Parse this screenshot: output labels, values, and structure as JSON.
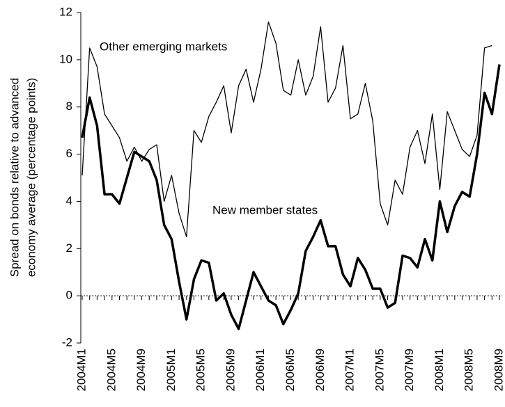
{
  "chart_data": {
    "type": "line",
    "ylabel": [
      "Spread on bonds relative to advanced",
      "economy average (percentage points)"
    ],
    "annotations": [
      "Other emerging markets",
      "New member states"
    ],
    "categories": [
      "2004M1",
      null,
      null,
      null,
      "2004M5",
      null,
      null,
      null,
      "2004M9",
      null,
      null,
      null,
      "2005M1",
      null,
      null,
      null,
      "2005M5",
      null,
      null,
      null,
      "2005M9",
      null,
      null,
      null,
      "2006M1",
      null,
      null,
      null,
      "2006M5",
      null,
      null,
      null,
      "2006M9",
      null,
      null,
      null,
      "2007M1",
      null,
      null,
      null,
      "2007M5",
      null,
      null,
      null,
      "2007M9",
      null,
      null,
      null,
      "2008M1",
      null,
      null,
      null,
      "2008M5",
      null,
      null,
      null,
      "2008M9"
    ],
    "series": [
      {
        "name": "New member states",
        "color": "#000000",
        "values": [
          6.7,
          8.4,
          7.2,
          4.3,
          4.3,
          3.9,
          5.0,
          6.1,
          5.9,
          5.7,
          4.9,
          3.0,
          2.4,
          0.6,
          -1.0,
          0.7,
          1.5,
          1.4,
          -0.2,
          0.1,
          -0.8,
          -1.4,
          -0.2,
          1.0,
          0.4,
          -0.2,
          -0.4,
          -1.2,
          -0.6,
          0.1,
          1.9,
          2.5,
          3.2,
          2.1,
          2.1,
          0.9,
          0.4,
          1.6,
          1.1,
          0.3,
          0.3,
          -0.5,
          -0.3,
          1.7,
          1.6,
          1.2,
          2.4,
          1.5,
          4.0,
          2.7,
          3.8,
          4.4,
          4.2,
          6.0,
          8.6,
          7.7,
          9.8
        ]
      },
      {
        "name": "Other emerging markets",
        "color": "#000000",
        "values": [
          5.1,
          10.5,
          9.7,
          7.7,
          7.2,
          6.7,
          5.7,
          6.3,
          5.7,
          6.2,
          6.4,
          4.0,
          5.1,
          3.5,
          2.5,
          7.0,
          6.5,
          7.6,
          8.2,
          8.9,
          6.9,
          8.9,
          9.6,
          8.2,
          9.6,
          11.6,
          10.7,
          8.7,
          8.5,
          10.0,
          8.5,
          9.3,
          11.4,
          8.2,
          8.8,
          10.6,
          7.5,
          7.7,
          9.0,
          7.4,
          3.9,
          3.0,
          4.9,
          4.3,
          6.3,
          7.0,
          5.6,
          7.7,
          4.5,
          7.8,
          7.0,
          6.2,
          5.9,
          6.8,
          10.5,
          10.6,
          null
        ]
      }
    ],
    "ylim": [
      -2,
      12
    ],
    "yticks": [
      -2,
      0,
      2,
      4,
      6,
      8,
      10,
      12
    ],
    "grid": false
  }
}
